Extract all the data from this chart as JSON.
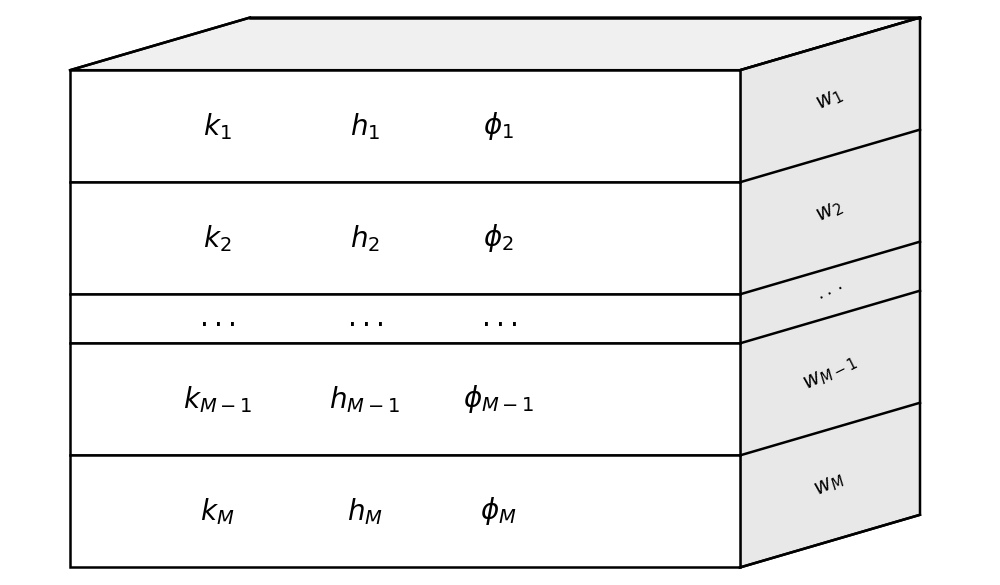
{
  "background_color": "#ffffff",
  "fig_width": 10.0,
  "fig_height": 5.85,
  "dpi": 100,
  "layers": [
    {
      "k": "k_{1}",
      "h": "h_{1}",
      "phi": "\\phi_{1}",
      "w": "w_1"
    },
    {
      "k": "k_{2}",
      "h": "h_{2}",
      "phi": "\\phi_{2}",
      "w": "w_2"
    },
    {
      "k": "...",
      "h": "...",
      "phi": "...",
      "w": "..."
    },
    {
      "k": "k_{M-1}",
      "h": "h_{M-1}",
      "phi": "\\phi_{M-1}",
      "w": "w_{M-1}"
    },
    {
      "k": "k_{M}",
      "h": "h_{M}",
      "phi": "\\phi_{M}",
      "w": "w_M"
    }
  ],
  "front_color": "#ffffff",
  "top_color": "#f0f0f0",
  "side_color": "#e8e8e8",
  "edge_color": "#000000",
  "text_color": "#000000",
  "line_width": 1.8,
  "label_fontsize": 20,
  "side_fontsize": 15
}
